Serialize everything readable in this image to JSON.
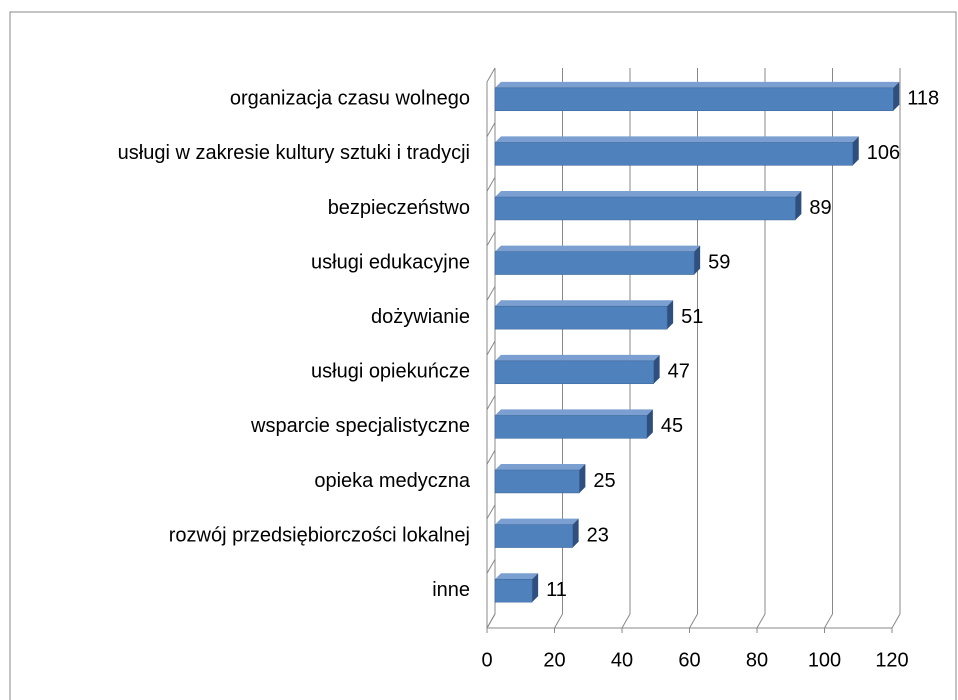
{
  "chart_data": {
    "type": "bar",
    "orientation": "horizontal",
    "categories": [
      "organizacja czasu wolnego",
      "usługi w zakresie kultury sztuki i tradycji",
      "bezpieczeństwo",
      "usługi edukacyjne",
      "dożywianie",
      "usługi opiekuńcze",
      "wsparcie specjalistyczne",
      "opieka medyczna",
      "rozwój przedsiębiorczości lokalnej",
      "inne"
    ],
    "values": [
      118,
      106,
      89,
      59,
      51,
      47,
      45,
      25,
      23,
      11
    ],
    "color": "#4f81bd",
    "xlim": [
      0,
      120
    ],
    "xticks": [
      0,
      20,
      40,
      60,
      80,
      100,
      120
    ],
    "grid": true
  }
}
